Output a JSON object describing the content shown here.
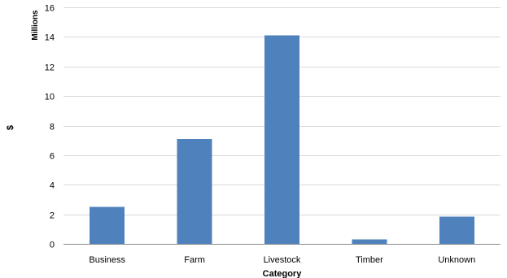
{
  "chart_data": {
    "type": "bar",
    "categories": [
      "Business",
      "Farm",
      "Livestock",
      "Timber",
      "Unknown"
    ],
    "values": [
      2.5,
      7.1,
      14.1,
      0.3,
      1.85
    ],
    "xlabel": "Category",
    "ylabel": "$",
    "units_label": "Millions",
    "ylim": [
      0,
      16
    ],
    "yticks": [
      "0",
      "2",
      "4",
      "6",
      "8",
      "10",
      "12",
      "14",
      "16"
    ],
    "grid": true,
    "legend": "none",
    "bar_color": "#4f81bd"
  }
}
